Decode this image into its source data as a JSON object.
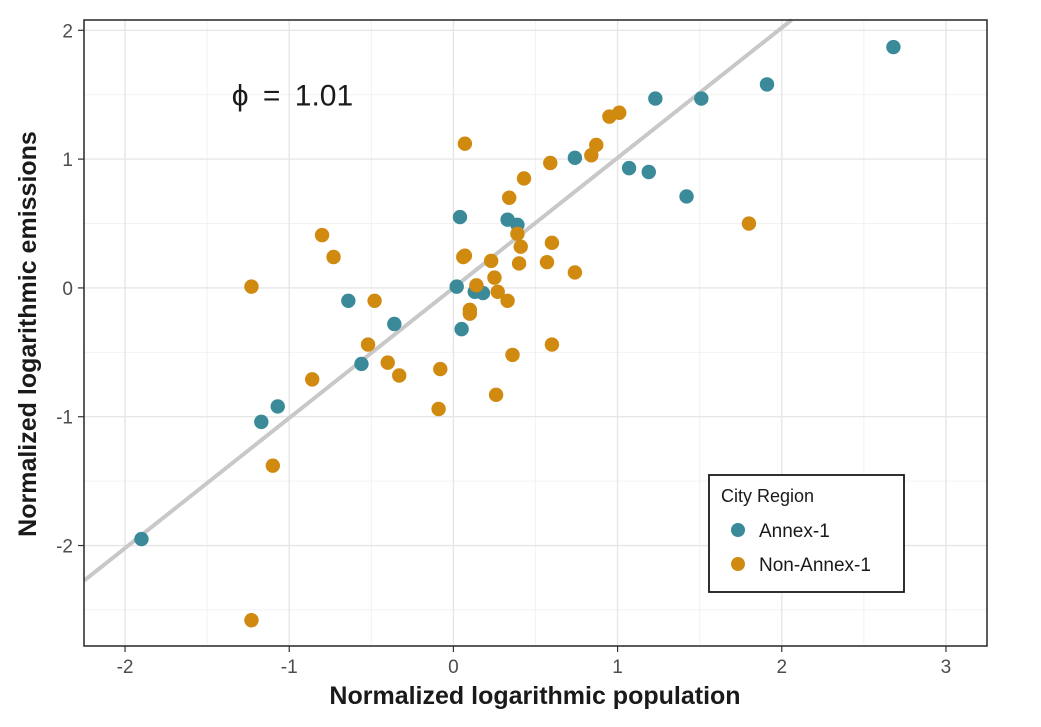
{
  "chart_data": {
    "type": "scatter",
    "xlabel": "Normalized logarithmic population",
    "ylabel": "Normalized logarithmic emissions",
    "xlim": [
      -2.25,
      3.25
    ],
    "ylim": [
      -2.78,
      2.08
    ],
    "x_ticks": [
      -2,
      -1,
      0,
      1,
      2,
      3
    ],
    "x_tick_labels": [
      "-2",
      "-1",
      "0",
      "1",
      "2",
      "3"
    ],
    "y_ticks": [
      -2,
      -1,
      0,
      1,
      2
    ],
    "y_tick_labels": [
      "-2",
      "-1",
      "0",
      "1",
      "2"
    ],
    "grid": true,
    "annotation": {
      "symbol": "ϕ",
      "operator": "=",
      "value": "1.01",
      "x": -1.35,
      "y": 1.5
    },
    "fit_line": {
      "slope": 1.01,
      "intercept": 0.0,
      "color": "#c8c8c8"
    },
    "legend": {
      "title": "City Region",
      "position": "bottom-right"
    },
    "series": [
      {
        "name": "Annex-1",
        "color": "#3a8a9a",
        "points": [
          [
            -1.9,
            -1.95
          ],
          [
            -1.17,
            -1.04
          ],
          [
            -1.07,
            -0.92
          ],
          [
            -0.64,
            -0.1
          ],
          [
            -0.56,
            -0.59
          ],
          [
            -0.36,
            -0.28
          ],
          [
            0.02,
            0.01
          ],
          [
            0.04,
            0.55
          ],
          [
            0.05,
            -0.32
          ],
          [
            0.13,
            -0.03
          ],
          [
            0.18,
            -0.04
          ],
          [
            0.33,
            0.53
          ],
          [
            0.39,
            0.49
          ],
          [
            0.74,
            1.01
          ],
          [
            1.07,
            0.93
          ],
          [
            1.19,
            0.9
          ],
          [
            1.23,
            1.47
          ],
          [
            1.42,
            0.71
          ],
          [
            1.51,
            1.47
          ],
          [
            1.91,
            1.58
          ],
          [
            2.68,
            1.87
          ]
        ]
      },
      {
        "name": "Non-Annex-1",
        "color": "#d18a10",
        "points": [
          [
            -1.23,
            0.01
          ],
          [
            -1.23,
            -2.58
          ],
          [
            -1.1,
            -1.38
          ],
          [
            -0.86,
            -0.71
          ],
          [
            -0.8,
            0.41
          ],
          [
            -0.73,
            0.24
          ],
          [
            -0.52,
            -0.44
          ],
          [
            -0.48,
            -0.1
          ],
          [
            -0.4,
            -0.58
          ],
          [
            -0.33,
            -0.68
          ],
          [
            -0.09,
            -0.94
          ],
          [
            -0.08,
            -0.63
          ],
          [
            0.06,
            0.24
          ],
          [
            0.07,
            1.12
          ],
          [
            0.07,
            0.25
          ],
          [
            0.1,
            -0.2
          ],
          [
            0.1,
            -0.17
          ],
          [
            0.14,
            0.02
          ],
          [
            0.23,
            0.21
          ],
          [
            0.25,
            0.08
          ],
          [
            0.26,
            -0.83
          ],
          [
            0.27,
            -0.03
          ],
          [
            0.33,
            -0.1
          ],
          [
            0.34,
            0.7
          ],
          [
            0.36,
            -0.52
          ],
          [
            0.39,
            0.42
          ],
          [
            0.4,
            0.19
          ],
          [
            0.41,
            0.32
          ],
          [
            0.43,
            0.85
          ],
          [
            0.57,
            0.2
          ],
          [
            0.59,
            0.97
          ],
          [
            0.6,
            0.35
          ],
          [
            0.6,
            -0.44
          ],
          [
            0.74,
            0.12
          ],
          [
            0.84,
            1.03
          ],
          [
            0.87,
            1.11
          ],
          [
            0.95,
            1.33
          ],
          [
            1.01,
            1.36
          ],
          [
            1.8,
            0.5
          ]
        ]
      }
    ]
  }
}
